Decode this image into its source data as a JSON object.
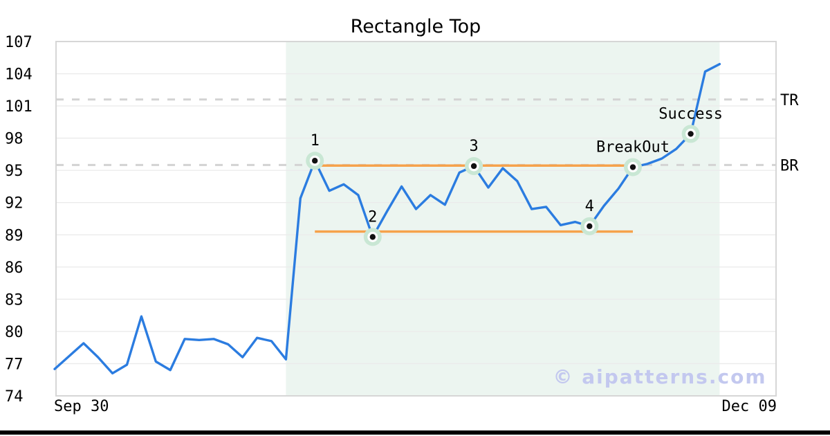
{
  "chart_data": {
    "type": "line",
    "title": "Rectangle Top",
    "pattern_name": "Rectangle Top",
    "ylim": [
      74,
      107
    ],
    "yticks": [
      74,
      77,
      80,
      83,
      86,
      89,
      92,
      95,
      98,
      101,
      104,
      107
    ],
    "x_ticks": [
      {
        "label": "Sep 30",
        "index": 1.9
      },
      {
        "label": "Dec 09",
        "index": 48.0
      }
    ],
    "values": [
      76.5,
      77.7,
      78.9,
      77.6,
      76.1,
      76.9,
      81.4,
      77.2,
      76.4,
      79.3,
      79.2,
      79.3,
      78.8,
      77.6,
      79.4,
      79.1,
      77.4,
      92.4,
      95.9,
      93.1,
      93.7,
      92.7,
      88.8,
      91.2,
      93.5,
      91.4,
      92.7,
      91.8,
      94.8,
      95.4,
      93.4,
      95.2,
      94.0,
      91.4,
      91.6,
      89.9,
      90.2,
      89.8,
      91.7,
      93.3,
      95.3,
      95.6,
      96.1,
      97.0,
      98.4,
      104.2,
      104.9
    ],
    "pattern_region": {
      "from_index": 16,
      "to_index": 46
    },
    "rectangle": {
      "resistance": {
        "value": 95.45,
        "from_index": 18,
        "to_index": 40
      },
      "support": {
        "value": 89.3,
        "from_index": 18,
        "to_index": 40
      }
    },
    "ref_lines": [
      {
        "label": "TR",
        "value": 101.6
      },
      {
        "label": "BR",
        "value": 95.5
      }
    ],
    "annotations": [
      {
        "label": "1",
        "index": 18,
        "value": 95.9
      },
      {
        "label": "2",
        "index": 22,
        "value": 88.8
      },
      {
        "label": "3",
        "index": 29,
        "value": 95.4
      },
      {
        "label": "4",
        "index": 37,
        "value": 89.8
      },
      {
        "label": "BreakOut",
        "index": 40,
        "value": 95.3
      },
      {
        "label": "Success",
        "index": 44,
        "value": 98.4
      }
    ],
    "watermark": "© aipatterns.com",
    "colors": {
      "price_line": "#2b7ce0",
      "rectangle_lines": "#f6a24b",
      "pattern_region_fill": "#ecf5f0",
      "marker_halo": "#c9e7d4",
      "marker_ring": "#ffffff",
      "marker_dot": "#111111",
      "dashed_ref": "#d3d3d3",
      "grid": "#ebebeb",
      "axis_border": "#d6d6d6",
      "watermark": "#c3c8ef",
      "text": "#000000"
    }
  }
}
